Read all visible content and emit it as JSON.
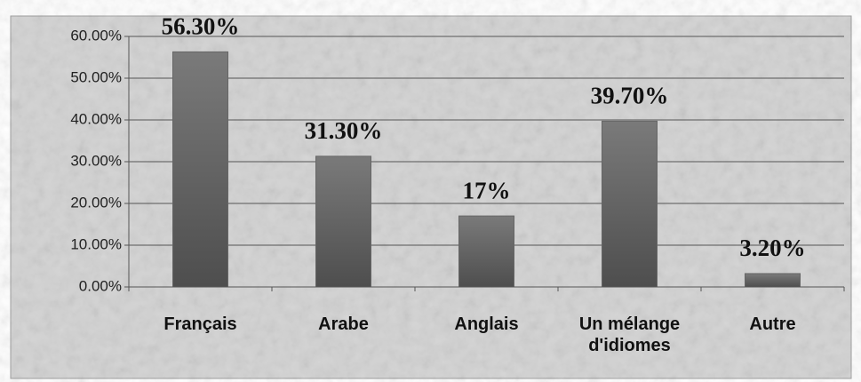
{
  "chart_data": {
    "type": "bar",
    "categories": [
      "Français",
      "Arabe",
      "Anglais",
      "Un mélange d'idiomes",
      "Autre"
    ],
    "values": [
      56.3,
      31.3,
      17,
      39.7,
      3.2
    ],
    "value_labels": [
      "56.30%",
      "31.30%",
      "17%",
      "39.70%",
      "3.20%"
    ],
    "color": "#666666",
    "ylim": [
      0,
      60
    ],
    "yticks": [
      {
        "value": 0,
        "label": "0.00%"
      },
      {
        "value": 10,
        "label": "10.00%"
      },
      {
        "value": 20,
        "label": "20.00%"
      },
      {
        "value": 30,
        "label": "30.00%"
      },
      {
        "value": 40,
        "label": "40.00%"
      },
      {
        "value": 50,
        "label": "50.00%"
      },
      {
        "value": 60,
        "label": "60.00%"
      }
    ],
    "grid": true
  }
}
